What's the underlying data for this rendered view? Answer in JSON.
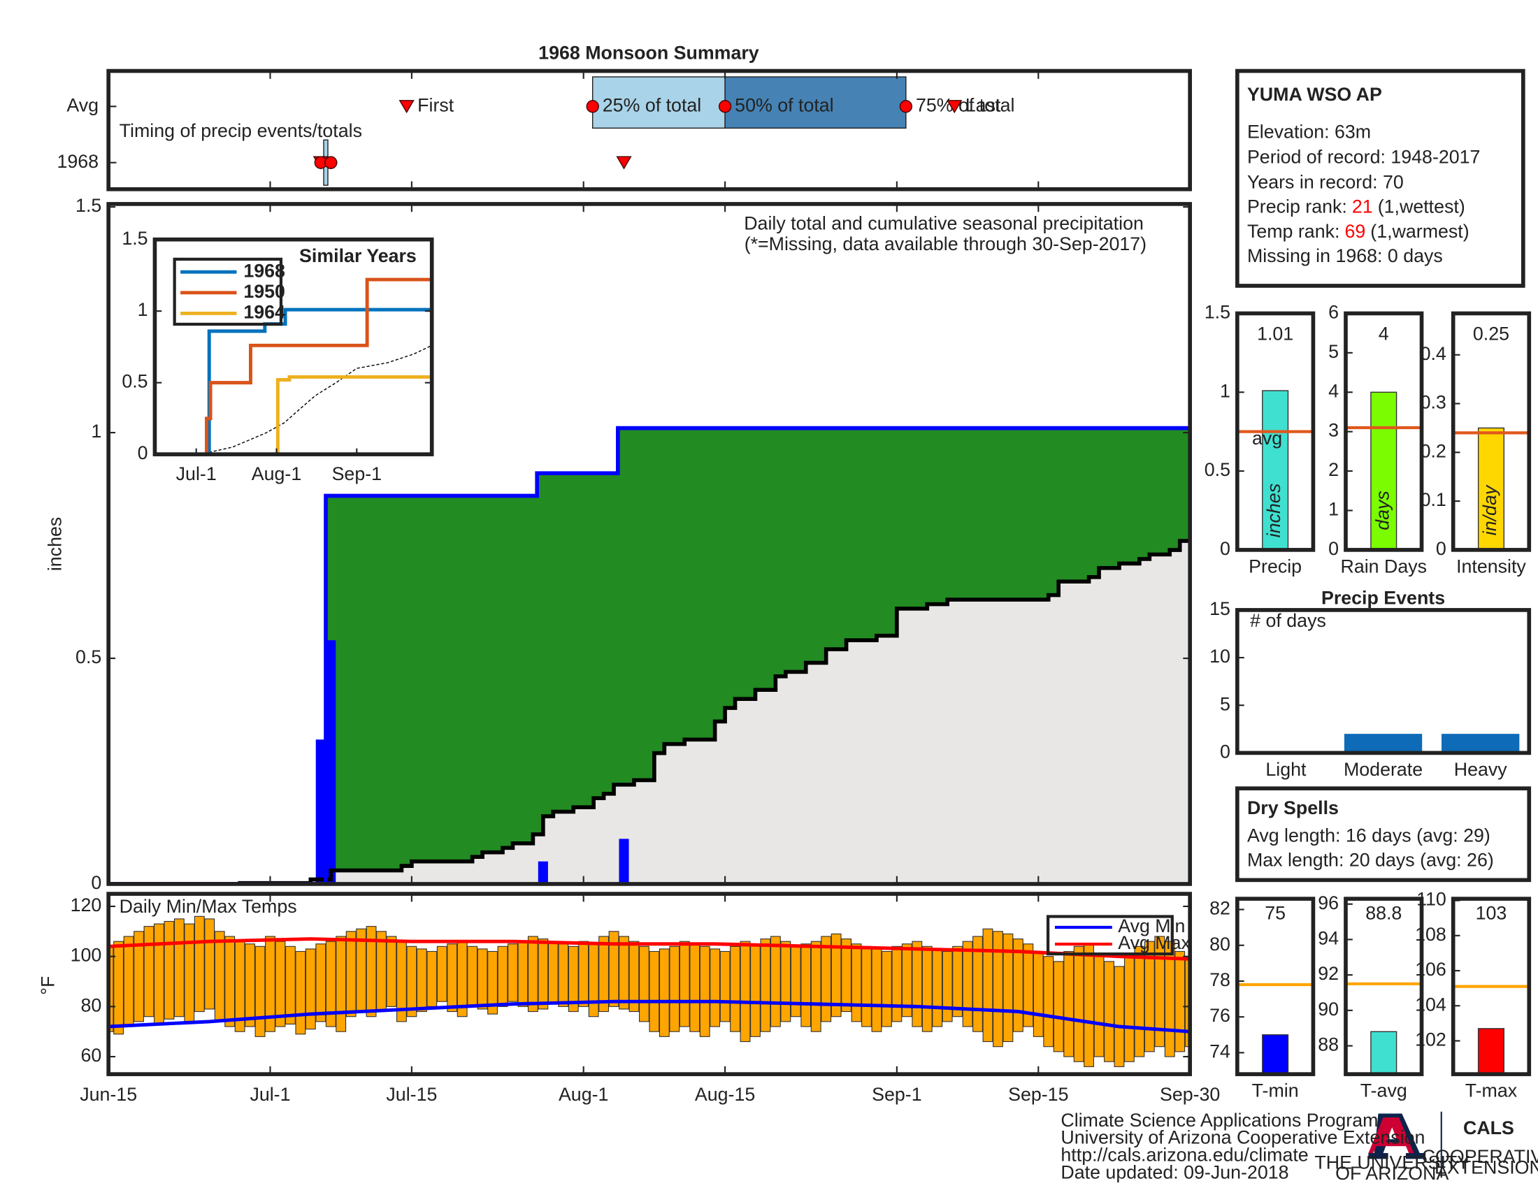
{
  "chart_data": [
    {
      "type": "timing",
      "text": "Timing of precip events/totals",
      "categories": [
        "Avg",
        "1968"
      ],
      "first_label": "First",
      "last_label": "Last",
      "quartile_labels": [
        "25% of total",
        "50% of total",
        "75% of total"
      ],
      "avg_first": 29.5,
      "avg_last": 83.7,
      "avg_quartiles": [
        47.9,
        61,
        78.9
      ],
      "year_first": 21,
      "year_last": 51,
      "year_quartiles": [
        21,
        22,
        22
      ],
      "light_color": "#a9d3e8",
      "dark_color": "#4682b4",
      "marker_color": "#ff0000"
    },
    {
      "type": "precip",
      "title": "1968 Monsoon Summary",
      "ylabel": "inches",
      "notes": [
        "Daily total and cumulative seasonal precipitation",
        "(*=Missing, data available through 30-Sep-2017)"
      ],
      "ylim": [
        0,
        1.5
      ],
      "yticks": [
        0,
        0.5,
        1,
        1.5
      ],
      "daily": {
        "color": "#0000ff",
        "x": [
          21,
          22,
          43,
          51
        ],
        "values": [
          0.32,
          0.54,
          0.05,
          0.1
        ]
      },
      "cumulative": {
        "color": "#0000ff",
        "x": [
          0,
          21.5,
          42.4,
          50.4,
          107
        ],
        "values": [
          0,
          0.86,
          0.91,
          1.01,
          1.01
        ]
      },
      "average": {
        "color": "#000000",
        "x": [
          0,
          13,
          20,
          22,
          27,
          29,
          30,
          34,
          36,
          37,
          39,
          40,
          42,
          43,
          44,
          46,
          48,
          49,
          50,
          52,
          54,
          55,
          57,
          60,
          61,
          62,
          64,
          66,
          67,
          69,
          71,
          73,
          76,
          78,
          81,
          83,
          86,
          93,
          94,
          97,
          98,
          100,
          102,
          103,
          105,
          106,
          107
        ],
        "values": [
          0,
          0.002,
          0.01,
          0.03,
          0.03,
          0.04,
          0.05,
          0.05,
          0.06,
          0.07,
          0.08,
          0.09,
          0.11,
          0.15,
          0.16,
          0.17,
          0.19,
          0.2,
          0.22,
          0.23,
          0.29,
          0.31,
          0.32,
          0.36,
          0.39,
          0.41,
          0.43,
          0.46,
          0.47,
          0.49,
          0.52,
          0.54,
          0.55,
          0.61,
          0.62,
          0.63,
          0.63,
          0.64,
          0.67,
          0.68,
          0.7,
          0.71,
          0.72,
          0.73,
          0.74,
          0.76,
          0.76
        ]
      },
      "above_color": "#228b22",
      "below_color": "#e9e7e5"
    },
    {
      "type": "temps",
      "title": "Daily Min/Max Temps",
      "ylabel": "°F",
      "xlim": [
        0,
        107
      ],
      "xticks": [
        {
          "value": 0,
          "label": "Jun-15"
        },
        {
          "value": 16,
          "label": "Jul-1"
        },
        {
          "value": 30,
          "label": "Jul-15"
        },
        {
          "value": 47,
          "label": "Aug-1"
        },
        {
          "value": 61,
          "label": "Aug-15"
        },
        {
          "value": 78,
          "label": "Sep-1"
        },
        {
          "value": 92,
          "label": "Sep-15"
        },
        {
          "value": 107,
          "label": "Sep-30"
        }
      ],
      "ylim": [
        53,
        125
      ],
      "yticks": [
        60,
        80,
        100,
        120
      ],
      "bar_color": "#ffa500",
      "x": [
        0,
        1,
        2,
        3,
        4,
        5,
        6,
        7,
        8,
        9,
        10,
        11,
        12,
        13,
        14,
        15,
        16,
        17,
        18,
        19,
        20,
        21,
        22,
        23,
        24,
        25,
        26,
        27,
        28,
        29,
        30,
        31,
        32,
        33,
        34,
        35,
        36,
        37,
        38,
        39,
        40,
        41,
        42,
        43,
        44,
        45,
        46,
        47,
        48,
        49,
        50,
        51,
        52,
        53,
        54,
        55,
        56,
        57,
        58,
        59,
        60,
        61,
        62,
        63,
        64,
        65,
        66,
        67,
        68,
        69,
        70,
        71,
        72,
        73,
        74,
        75,
        76,
        77,
        78,
        79,
        80,
        81,
        82,
        83,
        84,
        85,
        86,
        87,
        88,
        89,
        90,
        91,
        92,
        93,
        94,
        95,
        96,
        97,
        98,
        99,
        100,
        101,
        102,
        103,
        104,
        105,
        106,
        107
      ],
      "max": [
        104,
        106,
        108,
        110,
        112,
        113,
        114,
        115,
        113,
        116,
        115,
        110,
        108,
        106,
        105,
        104,
        108,
        106,
        104,
        102,
        103,
        105,
        106,
        108,
        110,
        111,
        112,
        110,
        108,
        106,
        104,
        103,
        102,
        104,
        105,
        106,
        104,
        103,
        102,
        104,
        105,
        106,
        108,
        107,
        106,
        105,
        104,
        106,
        105,
        108,
        110,
        108,
        106,
        104,
        102,
        103,
        104,
        106,
        105,
        104,
        103,
        102,
        104,
        106,
        105,
        107,
        108,
        106,
        104,
        105,
        106,
        108,
        109,
        107,
        105,
        104,
        103,
        102,
        104,
        105,
        106,
        104,
        103,
        102,
        104,
        106,
        108,
        111,
        110,
        109,
        107,
        105,
        102,
        100,
        98,
        102,
        104,
        105,
        100,
        98,
        96,
        100,
        104,
        106,
        108,
        106,
        102,
        100
      ],
      "min": [
        70,
        69,
        72,
        74,
        76,
        73,
        75,
        76,
        74,
        78,
        79,
        74,
        72,
        70,
        72,
        68,
        70,
        72,
        73,
        69,
        71,
        74,
        72,
        70,
        76,
        78,
        76,
        78,
        80,
        74,
        76,
        78,
        80,
        82,
        78,
        76,
        80,
        79,
        77,
        80,
        82,
        80,
        78,
        79,
        81,
        80,
        78,
        80,
        76,
        78,
        80,
        79,
        78,
        74,
        70,
        68,
        70,
        72,
        70,
        68,
        72,
        74,
        70,
        66,
        68,
        70,
        72,
        74,
        76,
        72,
        70,
        74,
        76,
        78,
        74,
        72,
        70,
        72,
        74,
        76,
        72,
        70,
        72,
        74,
        76,
        72,
        70,
        66,
        64,
        66,
        70,
        72,
        68,
        64,
        62,
        60,
        58,
        56,
        60,
        58,
        56,
        58,
        60,
        62,
        64,
        60,
        62,
        64
      ],
      "series": [
        {
          "name": "Avg Min",
          "color": "#0000ff",
          "x": [
            0,
            10,
            20,
            30,
            40,
            50,
            60,
            70,
            80,
            90,
            100,
            107
          ],
          "values": [
            72,
            74,
            77,
            79,
            81,
            82,
            82,
            81,
            80,
            78,
            72,
            70
          ]
        },
        {
          "name": "Avg Max",
          "color": "#ff0000",
          "x": [
            0,
            10,
            20,
            30,
            40,
            50,
            60,
            70,
            80,
            90,
            100,
            107
          ],
          "values": [
            104,
            106,
            107,
            106,
            106,
            105,
            105,
            104,
            103,
            102,
            100,
            99
          ]
        }
      ]
    },
    {
      "type": "inset",
      "title": "Similar Years",
      "xlim": [
        0,
        107
      ],
      "ylim": [
        0,
        1.5
      ],
      "yticks": [
        0,
        0.5,
        1,
        1.5
      ],
      "xticks": [
        {
          "value": 16,
          "label": "Jul-1"
        },
        {
          "value": 47,
          "label": "Aug-1"
        },
        {
          "value": 78,
          "label": "Sep-1"
        }
      ],
      "series": [
        {
          "name": "1968",
          "color": "#0072bd",
          "x": [
            0,
            21,
            42.5,
            50.4,
            107
          ],
          "values": [
            0,
            0.86,
            0.91,
            1.01,
            1.01
          ]
        },
        {
          "name": "1950",
          "color": "#d95319",
          "x": [
            0,
            20,
            21.5,
            37,
            82,
            107
          ],
          "values": [
            0,
            0.25,
            0.5,
            0.76,
            1.22,
            1.22
          ]
        },
        {
          "name": "1964",
          "color": "#edb120",
          "x": [
            0,
            47.5,
            52,
            107
          ],
          "values": [
            0,
            0.52,
            0.54,
            0.54
          ]
        }
      ],
      "average": {
        "color": "#000000",
        "x": [
          0,
          20,
          30,
          43,
          50,
          55,
          62,
          70,
          78,
          90,
          100,
          107
        ],
        "values": [
          0,
          0.01,
          0.05,
          0.15,
          0.22,
          0.3,
          0.41,
          0.5,
          0.6,
          0.64,
          0.7,
          0.76
        ]
      }
    },
    {
      "type": "station",
      "title": "YUMA WSO AP",
      "lines": [
        "Elevation: 63m",
        "Period of record: 1948-2017",
        "Years in record: 70"
      ],
      "precip_rank": {
        "label": "Precip rank:",
        "value": 21,
        "note": "(1,wettest)"
      },
      "temp_rank": {
        "label": "Temp rank:",
        "value": 69,
        "note": "(1,warmest)"
      },
      "missing": "Missing in 1968: 0 days",
      "rank_color": "#ff0000"
    },
    {
      "type": "single_bar",
      "xlabel": "Precip",
      "unit": "inches",
      "value": 1.01,
      "avg": 0.75,
      "avg_label": "avg",
      "color": "#40e0d0",
      "avg_color": "#e0581c",
      "ylim": [
        0,
        1.5
      ],
      "yticks": [
        0,
        0.5,
        1,
        1.5
      ]
    },
    {
      "type": "single_bar",
      "xlabel": "Rain Days",
      "unit": "days",
      "value": 4,
      "avg": 3.1,
      "color": "#7cfc00",
      "avg_color": "#e0581c",
      "ylim": [
        0,
        6
      ],
      "yticks": [
        0,
        1,
        2,
        3,
        4,
        5,
        6
      ]
    },
    {
      "type": "single_bar",
      "xlabel": "Intensity",
      "unit": "in/day",
      "value": 0.25,
      "avg": 0.24,
      "color": "#ffd700",
      "avg_color": "#e0581c",
      "ylim": [
        0,
        0.485
      ],
      "yticks": [
        0,
        0.1,
        0.2,
        0.3,
        0.4
      ]
    },
    {
      "type": "bar",
      "title": "Precip Events",
      "text": "# of days",
      "categories": [
        "Light",
        "Moderate",
        "Heavy"
      ],
      "values": [
        0,
        2,
        2
      ],
      "color": "#0e6bb8",
      "ylim": [
        0,
        15
      ],
      "yticks": [
        0,
        5,
        10,
        15
      ]
    },
    {
      "type": "dry_spells",
      "title": "Dry Spells",
      "lines": [
        "Avg length: 16 days (avg: 29)",
        "Max length: 20 days (avg: 26)"
      ],
      "color": "#a0522d"
    },
    {
      "type": "single_bar",
      "xlabel": "T-min",
      "value": 75,
      "avg": 77.8,
      "color": "#0000ff",
      "avg_color": "#ffa500",
      "ylim": [
        72.8,
        82.6
      ],
      "yticks": [
        74,
        76,
        78,
        80,
        82
      ]
    },
    {
      "type": "single_bar",
      "xlabel": "T-avg",
      "value": 88.8,
      "avg": 91.5,
      "color": "#40e0d0",
      "avg_color": "#ffa500",
      "ylim": [
        86.4,
        96.3
      ],
      "yticks": [
        88,
        90,
        92,
        94,
        96
      ]
    },
    {
      "type": "single_bar",
      "xlabel": "T-max",
      "value": 102.7,
      "value_labels": "103",
      "avg": 105.1,
      "color": "#ff0000",
      "avg_color": "#ffa500",
      "ylim": [
        100.1,
        110.1
      ],
      "yticks": [
        102,
        104,
        106,
        108,
        110
      ]
    }
  ],
  "footer": {
    "lines": [
      "Climate Science Applications Program",
      "University of Arizona Cooperative Extension",
      "http://cals.arizona.edu/climate",
      " Date updated: 09-Jun-2018"
    ],
    "ua": [
      "THE UNIVERSITY",
      "OF ARIZONA"
    ],
    "cals": "CALS",
    "extension": [
      "COOPERATIVE",
      "EXTENSION"
    ]
  }
}
